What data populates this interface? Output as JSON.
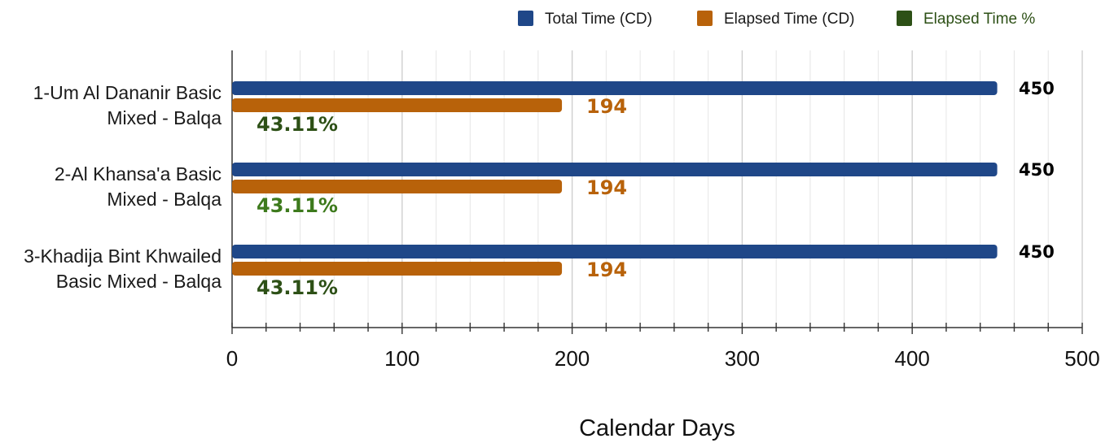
{
  "chart_data": {
    "type": "bar",
    "orientation": "horizontal",
    "categories": [
      [
        "1-Um Al Dananir Basic",
        "Mixed - Balqa"
      ],
      [
        "2-Al Khansa'a Basic",
        "Mixed - Balqa"
      ],
      [
        "3-Khadija Bint Khwailed",
        "Basic Mixed - Balqa"
      ]
    ],
    "series": [
      {
        "name": "Total Time  (CD)",
        "values": [
          450,
          450,
          450
        ],
        "labels": [
          "450",
          "450",
          "450"
        ],
        "color": "#1f4788",
        "label_color": "#000000"
      },
      {
        "name": "Elapsed Time (CD)",
        "values": [
          194,
          194,
          194
        ],
        "labels": [
          "194",
          "194",
          "194"
        ],
        "color": "#b8620a",
        "label_color": "#b8620a"
      }
    ],
    "percent_series": {
      "name": "Elapsed Time %",
      "labels": [
        "43.11%",
        "43.11%",
        "43.11%"
      ],
      "legend_color": "#2d5016",
      "label_colors": [
        "#2d5016",
        "#3d7a1c",
        "#2d5016"
      ]
    },
    "xlabel": "Calendar Days",
    "xlim": [
      0,
      500
    ],
    "x_ticks": [
      "0",
      "100",
      "200",
      "300",
      "400",
      "500"
    ],
    "minor_tick_step": 20,
    "grid": true,
    "legend_position": "top-right"
  }
}
